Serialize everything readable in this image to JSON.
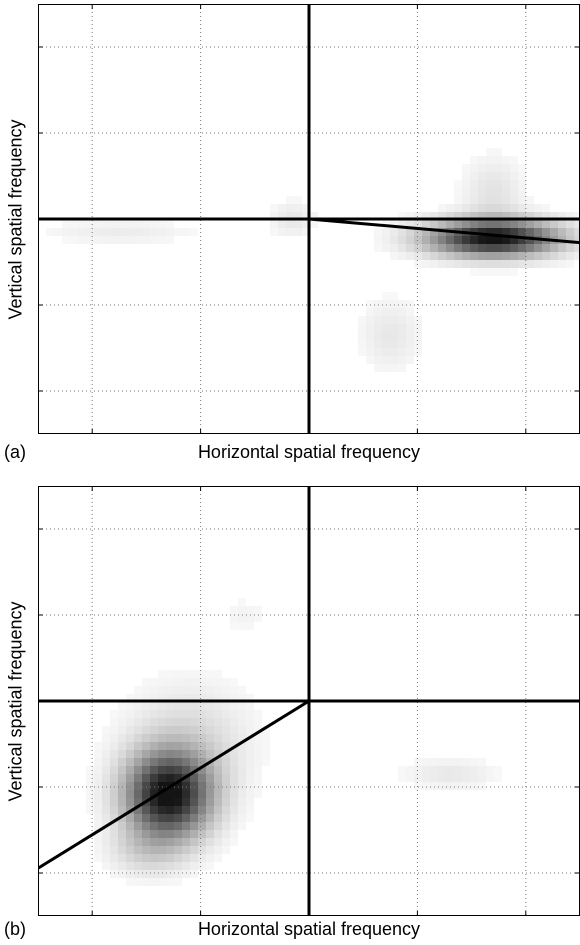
{
  "panels": [
    {
      "panel_label": "(a)",
      "xlabel": "Horizontal spatial frequency",
      "ylabel": "Vertical spatial frequency"
    },
    {
      "panel_label": "(b)",
      "xlabel": "Horizontal spatial frequency",
      "ylabel": "Vertical spatial frequency"
    }
  ],
  "chart_data": [
    {
      "type": "heatmap",
      "xlabel": "Horizontal spatial frequency",
      "ylabel": "Vertical spatial frequency",
      "xlim": [
        -5,
        5
      ],
      "ylim": [
        -5,
        5
      ],
      "grid": true,
      "axes_lines": "x=0 and y=0",
      "colormap": "white-to-black",
      "blobs": [
        {
          "x": 3.4,
          "y": -0.45,
          "sx": 0.85,
          "sy": 0.3,
          "intensity": 1.0
        },
        {
          "x": 3.4,
          "y": 0.6,
          "sx": 0.4,
          "sy": 0.6,
          "intensity": 0.12
        },
        {
          "x": -3.5,
          "y": -0.3,
          "sx": 1.0,
          "sy": 0.2,
          "intensity": 0.08
        },
        {
          "x": -0.3,
          "y": 0.0,
          "sx": 0.3,
          "sy": 0.3,
          "intensity": 0.1
        },
        {
          "x": 1.5,
          "y": -2.7,
          "sx": 0.4,
          "sy": 0.6,
          "intensity": 0.1
        }
      ],
      "orientation_line": {
        "x": [
          0,
          5.0
        ],
        "y": [
          0,
          -0.55
        ]
      }
    },
    {
      "type": "heatmap",
      "xlabel": "Horizontal spatial frequency",
      "ylabel": "Vertical spatial frequency",
      "xlim": [
        -5,
        5
      ],
      "ylim": [
        -5,
        5
      ],
      "grid": true,
      "axes_lines": "x=0 and y=0",
      "colormap": "white-to-black",
      "blobs": [
        {
          "x": -2.6,
          "y": -2.2,
          "sx": 0.55,
          "sy": 0.7,
          "intensity": 1.0
        },
        {
          "x": -2.2,
          "y": -1.0,
          "sx": 0.8,
          "sy": 1.0,
          "intensity": 0.15
        },
        {
          "x": -3.0,
          "y": -3.5,
          "sx": 0.5,
          "sy": 0.4,
          "intensity": 0.15
        },
        {
          "x": 2.6,
          "y": -1.7,
          "sx": 0.6,
          "sy": 0.25,
          "intensity": 0.1
        },
        {
          "x": -1.2,
          "y": 2.0,
          "sx": 0.3,
          "sy": 0.3,
          "intensity": 0.05
        }
      ],
      "orientation_line": {
        "x": [
          0,
          -5.4
        ],
        "y": [
          0,
          -4.2
        ]
      }
    }
  ]
}
